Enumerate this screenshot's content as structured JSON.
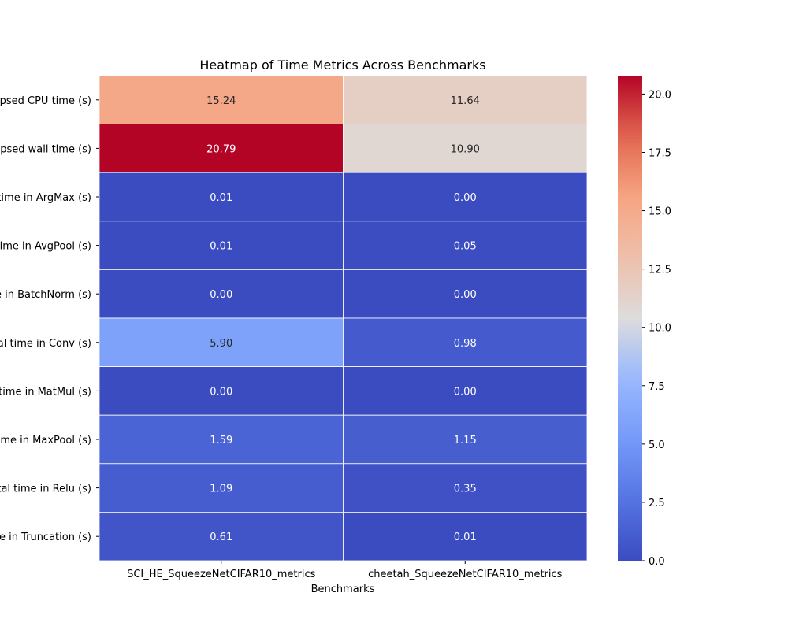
{
  "chart_data": {
    "type": "heatmap",
    "title": "Heatmap of Time Metrics Across Benchmarks",
    "xlabel": "Benchmarks",
    "ylabel": "",
    "columns": [
      "SCI_HE_SqueezeNetCIFAR10_metrics",
      "cheetah_SqueezeNetCIFAR10_metrics"
    ],
    "rows": [
      "Total elapsed CPU time (s)",
      "Total elapsed wall time (s)",
      "Total time in ArgMax (s)",
      "Total time in AvgPool (s)",
      "Total time in BatchNorm (s)",
      "Total time in Conv (s)",
      "Total time in MatMul (s)",
      "Total time in MaxPool (s)",
      "Total time in Relu (s)",
      "Total time in Truncation (s)"
    ],
    "values": [
      [
        15.24,
        11.64
      ],
      [
        20.79,
        10.9
      ],
      [
        0.01,
        0.0
      ],
      [
        0.01,
        0.05
      ],
      [
        0.0,
        0.0
      ],
      [
        5.9,
        0.98
      ],
      [
        0.0,
        0.0
      ],
      [
        1.59,
        1.15
      ],
      [
        1.09,
        0.35
      ],
      [
        0.61,
        0.01
      ]
    ],
    "cell_labels": [
      [
        "15.24",
        "11.64"
      ],
      [
        "20.79",
        "10.90"
      ],
      [
        "0.01",
        "0.00"
      ],
      [
        "0.01",
        "0.05"
      ],
      [
        "0.00",
        "0.00"
      ],
      [
        "5.90",
        "0.98"
      ],
      [
        "0.00",
        "0.00"
      ],
      [
        "1.59",
        "1.15"
      ],
      [
        "1.09",
        "0.35"
      ],
      [
        "0.61",
        "0.01"
      ]
    ],
    "colormap": "coolwarm",
    "colorbar": {
      "vmin": 0.0,
      "vmax": 20.79,
      "ticks": [
        0.0,
        2.5,
        5.0,
        7.5,
        10.0,
        12.5,
        15.0,
        17.5,
        20.0
      ],
      "tick_labels": [
        "0.0",
        "2.5",
        "5.0",
        "7.5",
        "10.0",
        "12.5",
        "15.0",
        "17.5",
        "20.0"
      ],
      "position": "right"
    },
    "grid": true
  }
}
